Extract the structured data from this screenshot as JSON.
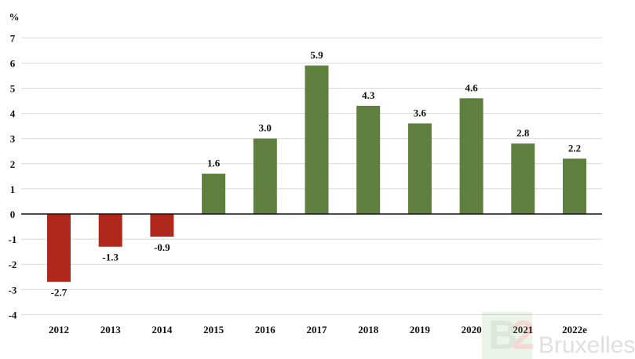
{
  "chart_data": {
    "type": "bar",
    "title": "",
    "ylabel": "%",
    "xlabel": "",
    "ylim": [
      -4,
      7
    ],
    "yticks": [
      7,
      6,
      5,
      4,
      3,
      2,
      1,
      0,
      -1,
      -2,
      -3,
      -4
    ],
    "grid": true,
    "categories": [
      "2012",
      "2013",
      "2014",
      "2015",
      "2016",
      "2017",
      "2018",
      "2019",
      "2020",
      "2021",
      "2022e"
    ],
    "values": [
      -2.7,
      -1.3,
      -0.9,
      1.6,
      3.0,
      5.9,
      4.3,
      3.6,
      4.6,
      2.8,
      2.2
    ],
    "data_labels": [
      "-2.7",
      "-1.3",
      "-0.9",
      "1.6",
      "3.0",
      "5.9",
      "4.3",
      "3.6",
      "4.6",
      "2.8",
      "2.2"
    ],
    "colors": {
      "negative": "#b0271c",
      "positive": "#5e7f3e",
      "grid": "#d8d8d8",
      "axis": "#111111"
    }
  },
  "watermark": "B2 Bruxelles"
}
